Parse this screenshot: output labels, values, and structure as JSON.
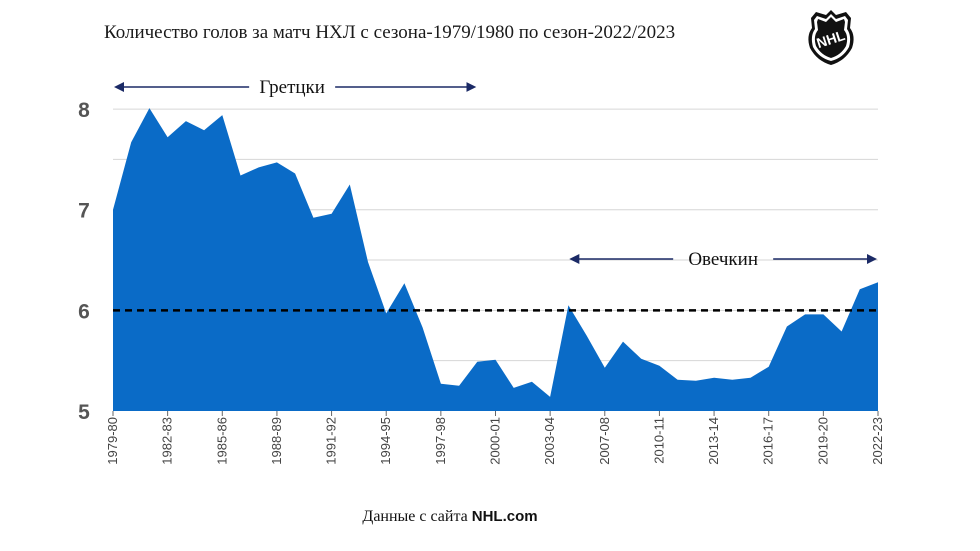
{
  "title": "Количество голов за матч НХЛ с сезона-1979/1980 по сезон-2022/2023",
  "logo_text": "NHL",
  "source_prefix": "Данные с сайта",
  "source_site": "NHL.com",
  "colors": {
    "area": "#0a6bc7",
    "grid": "#d6d6d6",
    "dashed": "#000000",
    "arrow": "#1b2a66"
  },
  "chart_data": {
    "type": "area",
    "title": "Количество голов за матч НХЛ с сезона-1979/1980 по сезон-2022/2023",
    "ylim": [
      5,
      8.1
    ],
    "yticks": [
      5,
      6,
      7,
      8
    ],
    "grid": true,
    "x_tick_labels": [
      "1979-80",
      "1982-83",
      "1985-86",
      "1988-89",
      "1991-92",
      "1994-95",
      "1997-98",
      "2000-01",
      "2003-04",
      "2007-08",
      "2010-11",
      "2013-14",
      "2016-17",
      "2019-20",
      "2022-23"
    ],
    "x": [
      "1979-80",
      "1980-81",
      "1981-82",
      "1982-83",
      "1983-84",
      "1984-85",
      "1985-86",
      "1986-87",
      "1987-88",
      "1988-89",
      "1989-90",
      "1990-91",
      "1991-92",
      "1992-93",
      "1993-94",
      "1994-95",
      "1995-96",
      "1996-97",
      "1997-98",
      "1998-99",
      "1999-00",
      "2000-01",
      "2001-02",
      "2002-03",
      "2003-04",
      "2005-06",
      "2006-07",
      "2007-08",
      "2008-09",
      "2009-10",
      "2010-11",
      "2011-12",
      "2012-13",
      "2013-14",
      "2014-15",
      "2015-16",
      "2016-17",
      "2017-18",
      "2018-19",
      "2019-20",
      "2020-21",
      "2021-22",
      "2022-23"
    ],
    "values": [
      7.0,
      7.67,
      8.01,
      7.72,
      7.88,
      7.79,
      7.94,
      7.34,
      7.42,
      7.47,
      7.36,
      6.92,
      6.96,
      7.25,
      6.48,
      5.97,
      6.27,
      5.83,
      5.27,
      5.25,
      5.49,
      5.51,
      5.23,
      5.29,
      5.14,
      6.05,
      5.75,
      5.43,
      5.69,
      5.52,
      5.45,
      5.31,
      5.3,
      5.33,
      5.31,
      5.33,
      5.44,
      5.84,
      5.96,
      5.96,
      5.79,
      6.21,
      6.28
    ],
    "reference_line": 6,
    "annotations": [
      {
        "label": "Гретцки",
        "from": "1979-80",
        "to": "1999-00"
      },
      {
        "label": "Овечкин",
        "from": "2005-06",
        "to": "2022-23"
      }
    ]
  }
}
